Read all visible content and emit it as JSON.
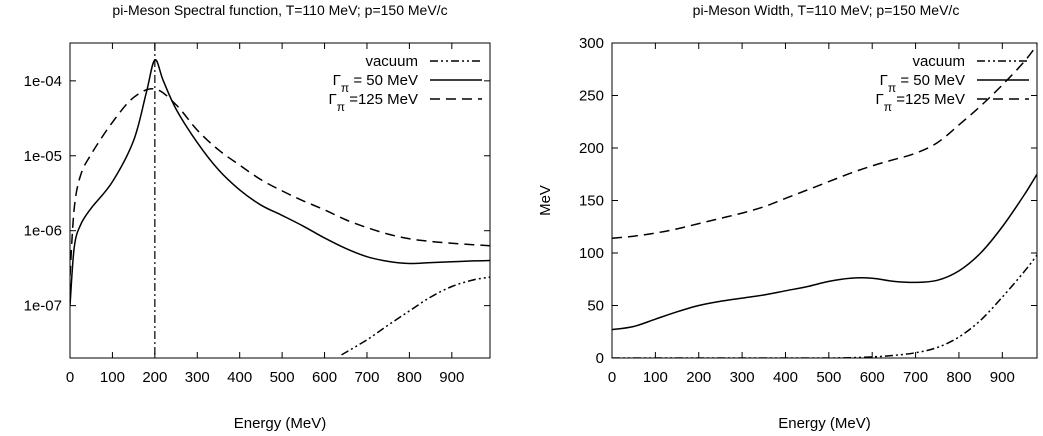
{
  "chart_data": [
    {
      "type": "line",
      "title": "pi-Meson Spectral function, T=110 MeV; p=150 MeV/c",
      "xlabel": "Energy (MeV)",
      "ylabel": "",
      "xlim": [
        0,
        990
      ],
      "ylim": [
        2e-08,
        0.00032
      ],
      "yscale": "log",
      "grid": false,
      "legend_position": "top-right",
      "xticks": [
        "0",
        "100",
        "200",
        "300",
        "400",
        "500",
        "600",
        "700",
        "800",
        "900"
      ],
      "yticks": [
        "1e-07",
        "1e-06",
        "1e-05",
        "1e-04"
      ],
      "series": [
        {
          "name": "vacuum",
          "legend_label": {
            "symbol": "",
            "sub": "",
            "rest": "vacuum"
          },
          "style": "dash-dot-dot",
          "x": [
            640,
            700,
            750,
            800,
            850,
            900,
            950,
            990
          ],
          "y": [
            2.2e-08,
            3.5e-08,
            5.5e-08,
            8.5e-08,
            1.3e-07,
            1.8e-07,
            2.2e-07,
            2.4e-07
          ]
        },
        {
          "name": "Γπ = 50 MeV",
          "legend_label": {
            "symbol": "Γ",
            "sub": "π",
            "rest": " =  50 MeV"
          },
          "style": "solid",
          "x": [
            0,
            10,
            25,
            50,
            100,
            150,
            180,
            200,
            220,
            250,
            300,
            350,
            400,
            450,
            500,
            550,
            600,
            650,
            700,
            750,
            800,
            850,
            900,
            950,
            990
          ],
          "y": [
            1e-07,
            6e-07,
            1.2e-06,
            2e-06,
            4.5e-06,
            1.6e-05,
            7e-05,
            0.00019,
            0.0001,
            4.2e-05,
            1.5e-05,
            6.5e-06,
            3.5e-06,
            2.2e-06,
            1.6e-06,
            1.15e-06,
            8e-07,
            5.8e-07,
            4.5e-07,
            3.9e-07,
            3.65e-07,
            3.75e-07,
            3.85e-07,
            3.95e-07,
            4e-07
          ]
        },
        {
          "name": "Γπ = 125 MeV",
          "legend_label": {
            "symbol": "Γ",
            "sub": "π",
            "rest": " =125 MeV"
          },
          "style": "dashed",
          "x": [
            0,
            10,
            25,
            50,
            100,
            150,
            200,
            250,
            300,
            350,
            400,
            450,
            500,
            550,
            600,
            650,
            700,
            750,
            800,
            850,
            900,
            950,
            990
          ],
          "y": [
            2.5e-07,
            2e-06,
            5.5e-06,
            1.05e-05,
            2.8e-05,
            6e-05,
            7.8e-05,
            4.8e-05,
            2.2e-05,
            1.2e-05,
            7.5e-06,
            4.8e-06,
            3.4e-06,
            2.5e-06,
            1.9e-06,
            1.4e-06,
            1.1e-06,
            9e-07,
            7.8e-07,
            7.2e-07,
            6.8e-07,
            6.5e-07,
            6.3e-07
          ]
        }
      ],
      "annotations": [
        {
          "type": "vertical-line",
          "x": 200,
          "style": "dash-dot"
        }
      ]
    },
    {
      "type": "line",
      "title": "pi-Meson Width, T=110 MeV; p=150 MeV/c",
      "xlabel": "Energy (MeV)",
      "ylabel": "MeV",
      "xlim": [
        0,
        980
      ],
      "ylim": [
        0,
        300
      ],
      "yscale": "linear",
      "grid": false,
      "legend_position": "top-right",
      "xticks": [
        "0",
        "100",
        "200",
        "300",
        "400",
        "500",
        "600",
        "700",
        "800",
        "900"
      ],
      "yticks": [
        "0",
        "50",
        "100",
        "150",
        "200",
        "250",
        "300"
      ],
      "series": [
        {
          "name": "vacuum",
          "legend_label": {
            "symbol": "",
            "sub": "",
            "rest": "vacuum"
          },
          "style": "dash-dot-dot",
          "x": [
            0,
            100,
            200,
            300,
            400,
            500,
            550,
            600,
            650,
            700,
            750,
            800,
            850,
            900,
            950,
            980
          ],
          "y": [
            0,
            0,
            0,
            0,
            0,
            0,
            0.3,
            1,
            2.5,
            5,
            10,
            20,
            36,
            58,
            82,
            98
          ]
        },
        {
          "name": "Γπ = 50 MeV",
          "legend_label": {
            "symbol": "Γ",
            "sub": "π",
            "rest": " =  50 MeV"
          },
          "style": "solid",
          "x": [
            0,
            50,
            100,
            150,
            200,
            250,
            300,
            350,
            400,
            450,
            500,
            550,
            600,
            650,
            700,
            750,
            800,
            850,
            900,
            950,
            980
          ],
          "y": [
            27,
            30,
            37,
            44,
            50,
            54,
            57,
            60,
            64,
            68,
            73,
            76,
            76,
            73,
            72,
            74,
            83,
            100,
            125,
            155,
            175
          ]
        },
        {
          "name": "Γπ = 125 MeV",
          "legend_label": {
            "symbol": "Γ",
            "sub": "π",
            "rest": " =125 MeV"
          },
          "style": "dashed",
          "x": [
            0,
            50,
            100,
            150,
            200,
            250,
            300,
            350,
            400,
            450,
            500,
            550,
            600,
            650,
            700,
            750,
            800,
            850,
            900,
            950,
            980
          ],
          "y": [
            114,
            116,
            119,
            123,
            128,
            133,
            138,
            144,
            152,
            160,
            168,
            176,
            183,
            189,
            195,
            205,
            222,
            240,
            260,
            282,
            298
          ]
        }
      ]
    }
  ]
}
